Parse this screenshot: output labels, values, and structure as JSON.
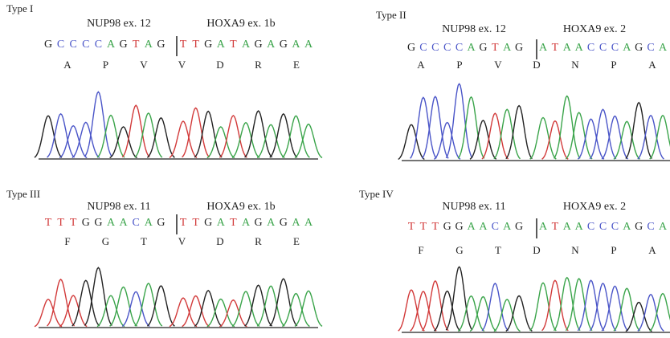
{
  "panels": [
    {
      "label": "Type I",
      "gene_left": "NUP98 ex. 12",
      "gene_right": "HOXA9 ex. 1b",
      "seq_left": [
        "G",
        "C",
        "C",
        "C",
        "C",
        "A",
        "G",
        "T",
        "A",
        "G"
      ],
      "seq_right": [
        "T",
        "T",
        "G",
        "A",
        "T",
        "A",
        "G",
        "A",
        "G",
        "A",
        "A"
      ],
      "amino_acids": [
        "A",
        "P",
        "V",
        "V",
        "D",
        "R",
        "E"
      ]
    },
    {
      "label": "Type II",
      "gene_left": "NUP98 ex. 12",
      "gene_right": "HOXA9 ex. 2",
      "seq_left": [
        "G",
        "C",
        "C",
        "C",
        "C",
        "A",
        "G",
        "T",
        "A",
        "G"
      ],
      "seq_right": [
        "A",
        "T",
        "A",
        "A",
        "C",
        "C",
        "C",
        "A",
        "G",
        "C",
        "A"
      ],
      "amino_acids": [
        "A",
        "P",
        "V",
        "D",
        "N",
        "P",
        "A"
      ]
    },
    {
      "label": "Type III",
      "gene_left": "NUP98 ex. 11",
      "gene_right": "HOXA9 ex. 1b",
      "seq_left": [
        "T",
        "T",
        "T",
        "G",
        "G",
        "A",
        "A",
        "C",
        "A",
        "G"
      ],
      "seq_right": [
        "T",
        "T",
        "G",
        "A",
        "T",
        "A",
        "G",
        "A",
        "G",
        "A",
        "A"
      ],
      "amino_acids": [
        "F",
        "G",
        "T",
        "V",
        "D",
        "R",
        "E"
      ]
    },
    {
      "label": "Type IV",
      "gene_left": "NUP98 ex. 11",
      "gene_right": "HOXA9 ex. 2",
      "seq_left": [
        "T",
        "T",
        "T",
        "G",
        "G",
        "A",
        "A",
        "C",
        "A",
        "G"
      ],
      "seq_right": [
        "A",
        "T",
        "A",
        "A",
        "C",
        "C",
        "C",
        "A",
        "G",
        "C",
        "A"
      ],
      "amino_acids": [
        "F",
        "G",
        "T",
        "D",
        "N",
        "P",
        "A"
      ]
    }
  ]
}
